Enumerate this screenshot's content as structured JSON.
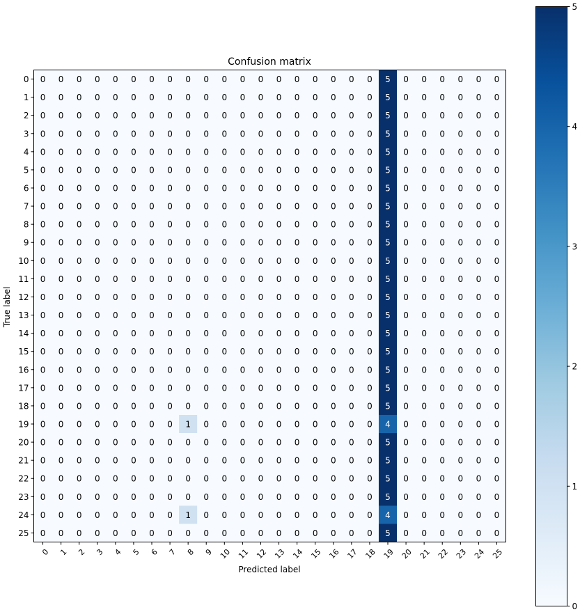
{
  "chart_data": {
    "type": "heatmap",
    "title": "Confusion matrix",
    "xlabel": "Predicted label",
    "ylabel": "True label",
    "x_ticks": [
      "0",
      "1",
      "2",
      "3",
      "4",
      "5",
      "6",
      "7",
      "8",
      "9",
      "10",
      "11",
      "12",
      "13",
      "14",
      "15",
      "16",
      "17",
      "18",
      "19",
      "20",
      "21",
      "22",
      "23",
      "24",
      "25"
    ],
    "y_ticks": [
      "0",
      "1",
      "2",
      "3",
      "4",
      "5",
      "6",
      "7",
      "8",
      "9",
      "10",
      "11",
      "12",
      "13",
      "14",
      "15",
      "16",
      "17",
      "18",
      "19",
      "20",
      "21",
      "22",
      "23",
      "24",
      "25"
    ],
    "matrix": [
      [
        0,
        0,
        0,
        0,
        0,
        0,
        0,
        0,
        0,
        0,
        0,
        0,
        0,
        0,
        0,
        0,
        0,
        0,
        0,
        5,
        0,
        0,
        0,
        0,
        0,
        0
      ],
      [
        0,
        0,
        0,
        0,
        0,
        0,
        0,
        0,
        0,
        0,
        0,
        0,
        0,
        0,
        0,
        0,
        0,
        0,
        0,
        5,
        0,
        0,
        0,
        0,
        0,
        0
      ],
      [
        0,
        0,
        0,
        0,
        0,
        0,
        0,
        0,
        0,
        0,
        0,
        0,
        0,
        0,
        0,
        0,
        0,
        0,
        0,
        5,
        0,
        0,
        0,
        0,
        0,
        0
      ],
      [
        0,
        0,
        0,
        0,
        0,
        0,
        0,
        0,
        0,
        0,
        0,
        0,
        0,
        0,
        0,
        0,
        0,
        0,
        0,
        5,
        0,
        0,
        0,
        0,
        0,
        0
      ],
      [
        0,
        0,
        0,
        0,
        0,
        0,
        0,
        0,
        0,
        0,
        0,
        0,
        0,
        0,
        0,
        0,
        0,
        0,
        0,
        5,
        0,
        0,
        0,
        0,
        0,
        0
      ],
      [
        0,
        0,
        0,
        0,
        0,
        0,
        0,
        0,
        0,
        0,
        0,
        0,
        0,
        0,
        0,
        0,
        0,
        0,
        0,
        5,
        0,
        0,
        0,
        0,
        0,
        0
      ],
      [
        0,
        0,
        0,
        0,
        0,
        0,
        0,
        0,
        0,
        0,
        0,
        0,
        0,
        0,
        0,
        0,
        0,
        0,
        0,
        5,
        0,
        0,
        0,
        0,
        0,
        0
      ],
      [
        0,
        0,
        0,
        0,
        0,
        0,
        0,
        0,
        0,
        0,
        0,
        0,
        0,
        0,
        0,
        0,
        0,
        0,
        0,
        5,
        0,
        0,
        0,
        0,
        0,
        0
      ],
      [
        0,
        0,
        0,
        0,
        0,
        0,
        0,
        0,
        0,
        0,
        0,
        0,
        0,
        0,
        0,
        0,
        0,
        0,
        0,
        5,
        0,
        0,
        0,
        0,
        0,
        0
      ],
      [
        0,
        0,
        0,
        0,
        0,
        0,
        0,
        0,
        0,
        0,
        0,
        0,
        0,
        0,
        0,
        0,
        0,
        0,
        0,
        5,
        0,
        0,
        0,
        0,
        0,
        0
      ],
      [
        0,
        0,
        0,
        0,
        0,
        0,
        0,
        0,
        0,
        0,
        0,
        0,
        0,
        0,
        0,
        0,
        0,
        0,
        0,
        5,
        0,
        0,
        0,
        0,
        0,
        0
      ],
      [
        0,
        0,
        0,
        0,
        0,
        0,
        0,
        0,
        0,
        0,
        0,
        0,
        0,
        0,
        0,
        0,
        0,
        0,
        0,
        5,
        0,
        0,
        0,
        0,
        0,
        0
      ],
      [
        0,
        0,
        0,
        0,
        0,
        0,
        0,
        0,
        0,
        0,
        0,
        0,
        0,
        0,
        0,
        0,
        0,
        0,
        0,
        5,
        0,
        0,
        0,
        0,
        0,
        0
      ],
      [
        0,
        0,
        0,
        0,
        0,
        0,
        0,
        0,
        0,
        0,
        0,
        0,
        0,
        0,
        0,
        0,
        0,
        0,
        0,
        5,
        0,
        0,
        0,
        0,
        0,
        0
      ],
      [
        0,
        0,
        0,
        0,
        0,
        0,
        0,
        0,
        0,
        0,
        0,
        0,
        0,
        0,
        0,
        0,
        0,
        0,
        0,
        5,
        0,
        0,
        0,
        0,
        0,
        0
      ],
      [
        0,
        0,
        0,
        0,
        0,
        0,
        0,
        0,
        0,
        0,
        0,
        0,
        0,
        0,
        0,
        0,
        0,
        0,
        0,
        5,
        0,
        0,
        0,
        0,
        0,
        0
      ],
      [
        0,
        0,
        0,
        0,
        0,
        0,
        0,
        0,
        0,
        0,
        0,
        0,
        0,
        0,
        0,
        0,
        0,
        0,
        0,
        5,
        0,
        0,
        0,
        0,
        0,
        0
      ],
      [
        0,
        0,
        0,
        0,
        0,
        0,
        0,
        0,
        0,
        0,
        0,
        0,
        0,
        0,
        0,
        0,
        0,
        0,
        0,
        5,
        0,
        0,
        0,
        0,
        0,
        0
      ],
      [
        0,
        0,
        0,
        0,
        0,
        0,
        0,
        0,
        0,
        0,
        0,
        0,
        0,
        0,
        0,
        0,
        0,
        0,
        0,
        5,
        0,
        0,
        0,
        0,
        0,
        0
      ],
      [
        0,
        0,
        0,
        0,
        0,
        0,
        0,
        0,
        1,
        0,
        0,
        0,
        0,
        0,
        0,
        0,
        0,
        0,
        0,
        4,
        0,
        0,
        0,
        0,
        0,
        0
      ],
      [
        0,
        0,
        0,
        0,
        0,
        0,
        0,
        0,
        0,
        0,
        0,
        0,
        0,
        0,
        0,
        0,
        0,
        0,
        0,
        5,
        0,
        0,
        0,
        0,
        0,
        0
      ],
      [
        0,
        0,
        0,
        0,
        0,
        0,
        0,
        0,
        0,
        0,
        0,
        0,
        0,
        0,
        0,
        0,
        0,
        0,
        0,
        5,
        0,
        0,
        0,
        0,
        0,
        0
      ],
      [
        0,
        0,
        0,
        0,
        0,
        0,
        0,
        0,
        0,
        0,
        0,
        0,
        0,
        0,
        0,
        0,
        0,
        0,
        0,
        5,
        0,
        0,
        0,
        0,
        0,
        0
      ],
      [
        0,
        0,
        0,
        0,
        0,
        0,
        0,
        0,
        0,
        0,
        0,
        0,
        0,
        0,
        0,
        0,
        0,
        0,
        0,
        5,
        0,
        0,
        0,
        0,
        0,
        0
      ],
      [
        0,
        0,
        0,
        0,
        0,
        0,
        0,
        0,
        1,
        0,
        0,
        0,
        0,
        0,
        0,
        0,
        0,
        0,
        0,
        4,
        0,
        0,
        0,
        0,
        0,
        0
      ],
      [
        0,
        0,
        0,
        0,
        0,
        0,
        0,
        0,
        0,
        0,
        0,
        0,
        0,
        0,
        0,
        0,
        0,
        0,
        0,
        5,
        0,
        0,
        0,
        0,
        0,
        0
      ]
    ],
    "colorbar": {
      "min": 0,
      "max": 5,
      "ticks": [
        "0",
        "1",
        "2",
        "3",
        "4",
        "5"
      ]
    },
    "colormap": "Blues",
    "colormap_stops": [
      "#f7fbff",
      "#deebf7",
      "#c6dbef",
      "#9ecae1",
      "#6baed6",
      "#4292c6",
      "#2171b5",
      "#08519c",
      "#08306b"
    ],
    "grid": false
  }
}
